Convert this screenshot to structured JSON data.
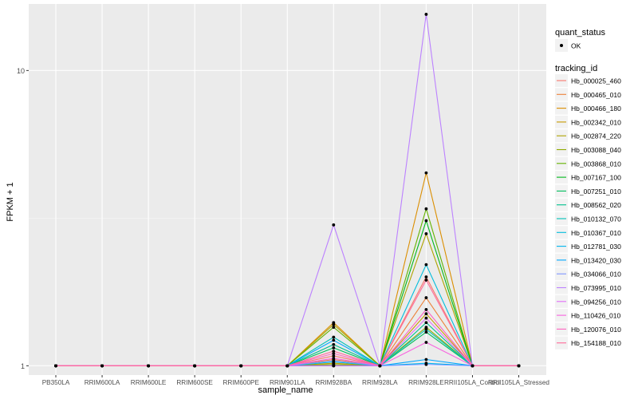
{
  "chart_data": {
    "type": "line",
    "xlabel": "sample_name",
    "ylabel": "FPKM + 1",
    "y_scale": "log10",
    "ylim": [
      0.93,
      16.8
    ],
    "y_ticks": [
      {
        "value": 1,
        "label": "1"
      },
      {
        "value": 10,
        "label": "10"
      }
    ],
    "background": "#ebebeb",
    "grid": true,
    "legend_position": "right",
    "categories": [
      "PB350LA",
      "RRIM600LA",
      "RRIM600LE",
      "RRIM600SE",
      "RRIM600PE",
      "RRIM901LA",
      "RRIM928BA",
      "RRIM928LA",
      "RRIM928LE",
      "RRII105LA_Control",
      "RRII105LA_Stressed"
    ],
    "point_legend": {
      "title": "quant_status",
      "items": [
        {
          "label": "OK",
          "color": "#000000"
        }
      ]
    },
    "series_legend_title": "tracking_id",
    "series": [
      {
        "name": "Hb_000025_460",
        "color": "#F8766D",
        "values": [
          1,
          1,
          1,
          1,
          1,
          1,
          1.08,
          1,
          2.0,
          1,
          1
        ]
      },
      {
        "name": "Hb_000465_010",
        "color": "#EC8239",
        "values": [
          1,
          1,
          1,
          1,
          1,
          1,
          1.05,
          1,
          1.7,
          1,
          1
        ]
      },
      {
        "name": "Hb_000466_180",
        "color": "#DB8E00",
        "values": [
          1,
          1,
          1,
          1,
          1,
          1,
          1.4,
          1,
          4.5,
          1,
          1
        ]
      },
      {
        "name": "Hb_002342_010",
        "color": "#C79800",
        "values": [
          1,
          1,
          1,
          1,
          1,
          1,
          1.02,
          1,
          1.5,
          1,
          1
        ]
      },
      {
        "name": "Hb_002874_220",
        "color": "#AEA200",
        "values": [
          1,
          1,
          1,
          1,
          1,
          1,
          1.38,
          1,
          2.8,
          1,
          1
        ]
      },
      {
        "name": "Hb_003088_040",
        "color": "#8FAA00",
        "values": [
          1,
          1,
          1,
          1,
          1,
          1,
          1.01,
          1,
          1.35,
          1,
          1
        ]
      },
      {
        "name": "Hb_003868_010",
        "color": "#64B200",
        "values": [
          1,
          1,
          1,
          1,
          1,
          1,
          1.35,
          1,
          3.4,
          1,
          1
        ]
      },
      {
        "name": "Hb_007167_100",
        "color": "#00B81B",
        "values": [
          1,
          1,
          1,
          1,
          1,
          1,
          1.0,
          1,
          3.1,
          1,
          1
        ]
      },
      {
        "name": "Hb_007251_010",
        "color": "#00BD5C",
        "values": [
          1,
          1,
          1,
          1,
          1,
          1,
          1.15,
          1,
          1.3,
          1,
          1
        ]
      },
      {
        "name": "Hb_008562_020",
        "color": "#00C08E",
        "values": [
          1,
          1,
          1,
          1,
          1,
          1,
          1.18,
          1,
          1.4,
          1,
          1
        ]
      },
      {
        "name": "Hb_010132_070",
        "color": "#00C1B7",
        "values": [
          1,
          1,
          1,
          1,
          1,
          1,
          1.25,
          1,
          1.33,
          1,
          1
        ]
      },
      {
        "name": "Hb_010367_010",
        "color": "#00BDDC",
        "values": [
          1,
          1,
          1,
          1,
          1,
          1,
          1.03,
          1,
          2.2,
          1,
          1
        ]
      },
      {
        "name": "Hb_012781_030",
        "color": "#00B5EE",
        "values": [
          1,
          1,
          1,
          1,
          1,
          1,
          1.0,
          1,
          1.02,
          1,
          1
        ]
      },
      {
        "name": "Hb_013420_030",
        "color": "#00A7FF",
        "values": [
          1,
          1,
          1,
          1,
          1,
          1,
          1.22,
          1,
          1.05,
          1,
          1
        ]
      },
      {
        "name": "Hb_034066_010",
        "color": "#7F96FF",
        "values": [
          1,
          1,
          1,
          1,
          1,
          1,
          1.04,
          1,
          1.01,
          1,
          1
        ]
      },
      {
        "name": "Hb_073995_010",
        "color": "#BC81FF",
        "values": [
          1,
          1,
          1,
          1,
          1,
          1,
          3.0,
          1,
          15.5,
          1,
          1
        ]
      },
      {
        "name": "Hb_094256_010",
        "color": "#E26EF7",
        "values": [
          1,
          1,
          1,
          1,
          1,
          1,
          1.0,
          1,
          1.45,
          1,
          1
        ]
      },
      {
        "name": "Hb_110426_010",
        "color": "#F863DF",
        "values": [
          1,
          1,
          1,
          1,
          1,
          1,
          1.06,
          1,
          1.2,
          1,
          1
        ]
      },
      {
        "name": "Hb_120076_010",
        "color": "#FF62BF",
        "values": [
          1,
          1,
          1,
          1,
          1,
          1,
          1.1,
          1,
          1.55,
          1,
          1
        ]
      },
      {
        "name": "Hb_154188_010",
        "color": "#FF6A98",
        "values": [
          1,
          1,
          1,
          1,
          1,
          1,
          1.12,
          1,
          1.95,
          1,
          1
        ]
      }
    ]
  }
}
